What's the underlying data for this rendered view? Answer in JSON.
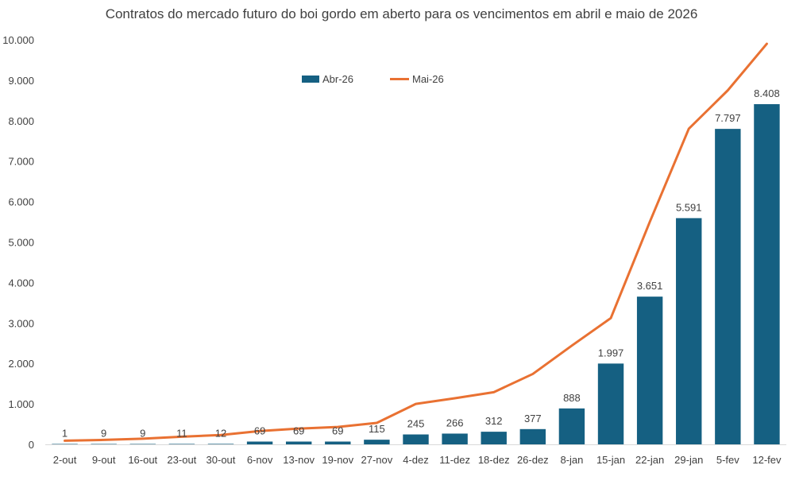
{
  "chart_data": {
    "type": "bar",
    "title": "Contratos do mercado futuro do boi gordo em aberto para os vencimentos em abril e maio de 2026",
    "xlabel": "",
    "ylabel": "",
    "ylim": [
      0,
      10000
    ],
    "yticks": [
      "0",
      "1.000",
      "2.000",
      "3.000",
      "4.000",
      "5.000",
      "6.000",
      "7.000",
      "8.000",
      "9.000",
      "10.000"
    ],
    "categories": [
      "2-out",
      "9-out",
      "16-out",
      "23-out",
      "30-out",
      "6-nov",
      "13-nov",
      "19-nov",
      "27-nov",
      "4-dez",
      "11-dez",
      "18-dez",
      "26-dez",
      "8-jan",
      "15-jan",
      "22-jan",
      "29-jan",
      "5-fev",
      "12-fev"
    ],
    "series": [
      {
        "name": "Abr-26",
        "type": "bar",
        "color": "#156082",
        "values": [
          1,
          9,
          9,
          11,
          12,
          69,
          69,
          69,
          115,
          245,
          266,
          312,
          377,
          888,
          1997,
          3651,
          5591,
          7797,
          8408
        ],
        "labels": [
          "1",
          "9",
          "9",
          "11",
          "12",
          "69",
          "69",
          "69",
          "115",
          "245",
          "266",
          "312",
          "377",
          "888",
          "1.997",
          "3.651",
          "5.591",
          "7.797",
          "8.408"
        ]
      },
      {
        "name": "Mai-26",
        "type": "line",
        "color": "#E97132",
        "values": [
          90,
          110,
          140,
          190,
          230,
          330,
          390,
          430,
          530,
          1000,
          1140,
          1290,
          1740,
          2440,
          3120,
          5500,
          7800,
          8750,
          9900
        ]
      }
    ],
    "legend_position": "top-center",
    "grid": false
  }
}
